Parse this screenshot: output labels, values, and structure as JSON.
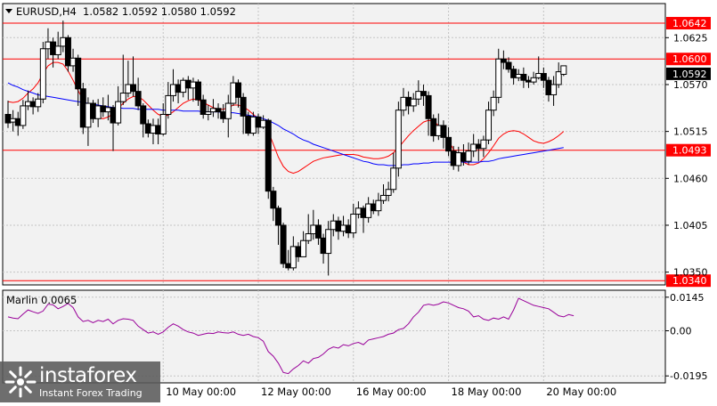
{
  "chart_data": [
    {
      "type": "candlestick",
      "title": "EURUSD,H4  1.0582 1.0592 1.0580 1.0592",
      "symbol_header": "EURUSD,H4",
      "ohlc_header": "1.0582 1.0592 1.0580 1.0592",
      "x_tick_labels": [
        "10 May 00:00",
        "12 May 00:00",
        "16 May 00:00",
        "18 May 00:00",
        "20 May 00:00"
      ],
      "x_tick_bar_index": [
        31,
        50,
        69,
        88,
        107
      ],
      "ylim": [
        1.0335,
        1.0665
      ],
      "y_tick_labels": [
        "1.0625",
        "1.0570",
        "1.0515",
        "1.0460",
        "1.0405",
        "1.0350"
      ],
      "y_ticks": [
        1.0625,
        1.057,
        1.0515,
        1.046,
        1.0405,
        1.035
      ],
      "grid": true,
      "horizontal_levels": [
        {
          "value": 1.0642,
          "label": "1.0642",
          "color": "#ff0000"
        },
        {
          "value": 1.06,
          "label": "1.0600",
          "color": "#ff0000"
        },
        {
          "value": 1.0493,
          "label": "1.0493",
          "color": "#ff0000"
        },
        {
          "value": 1.034,
          "label": "1.0340",
          "color": "#ff0000"
        }
      ],
      "current_price": {
        "value": 1.0592,
        "label": "1.0592"
      },
      "candles": [
        [
          1.0535,
          1.0525,
          1.0551,
          1.0519
        ],
        [
          1.0526,
          1.053,
          1.054,
          1.0515
        ],
        [
          1.053,
          1.0522,
          1.0538,
          1.051
        ],
        [
          1.0522,
          1.0545,
          1.0552,
          1.0518
        ],
        [
          1.0545,
          1.055,
          1.0563,
          1.054
        ],
        [
          1.055,
          1.0544,
          1.0555,
          1.0535
        ],
        [
          1.0544,
          1.0553,
          1.056,
          1.0538
        ],
        [
          1.0553,
          1.0612,
          1.062,
          1.0548
        ],
        [
          1.0612,
          1.062,
          1.0636,
          1.06
        ],
        [
          1.062,
          1.0605,
          1.0625,
          1.059
        ],
        [
          1.0605,
          1.0615,
          1.0632,
          1.06
        ],
        [
          1.0615,
          1.0625,
          1.0645,
          1.0608
        ],
        [
          1.0625,
          1.0592,
          1.0628,
          1.0585
        ],
        [
          1.0592,
          1.0601,
          1.0612,
          1.0585
        ],
        [
          1.0601,
          1.0565,
          1.0605,
          1.0545
        ],
        [
          1.0565,
          1.052,
          1.0572,
          1.0512
        ],
        [
          1.052,
          1.0548,
          1.0555,
          1.0498
        ],
        [
          1.0548,
          1.053,
          1.0552,
          1.0525
        ],
        [
          1.053,
          1.0545,
          1.0553,
          1.052
        ],
        [
          1.0545,
          1.0538,
          1.0555,
          1.0532
        ],
        [
          1.0538,
          1.0543,
          1.0558,
          1.0528
        ],
        [
          1.0543,
          1.0525,
          1.0546,
          1.0492
        ],
        [
          1.0525,
          1.055,
          1.0568,
          1.0522
        ],
        [
          1.055,
          1.056,
          1.0605,
          1.0546
        ],
        [
          1.056,
          1.057,
          1.0598,
          1.0555
        ],
        [
          1.057,
          1.0562,
          1.0603,
          1.0556
        ],
        [
          1.0562,
          1.0545,
          1.0578,
          1.054
        ],
        [
          1.0545,
          1.0524,
          1.0548,
          1.0508
        ],
        [
          1.0524,
          1.0513,
          1.0529,
          1.0508
        ],
        [
          1.0513,
          1.0522,
          1.053,
          1.05
        ],
        [
          1.0522,
          1.0512,
          1.053,
          1.05
        ],
        [
          1.0512,
          1.0535,
          1.0548,
          1.051
        ],
        [
          1.0535,
          1.0557,
          1.0573,
          1.053
        ],
        [
          1.0557,
          1.057,
          1.0588,
          1.055
        ],
        [
          1.057,
          1.0561,
          1.0576,
          1.0548
        ],
        [
          1.0561,
          1.0575,
          1.0578,
          1.0555
        ],
        [
          1.0575,
          1.0566,
          1.058,
          1.0552
        ],
        [
          1.0566,
          1.0573,
          1.0578,
          1.055
        ],
        [
          1.0573,
          1.0552,
          1.0576,
          1.0545
        ],
        [
          1.0552,
          1.0535,
          1.0558,
          1.053
        ],
        [
          1.0535,
          1.0538,
          1.0546,
          1.0528
        ],
        [
          1.0538,
          1.0542,
          1.0553,
          1.0532
        ],
        [
          1.0542,
          1.0538,
          1.0548,
          1.053
        ],
        [
          1.0538,
          1.053,
          1.0547,
          1.0525
        ],
        [
          1.053,
          1.0548,
          1.0558,
          1.0508
        ],
        [
          1.0548,
          1.0572,
          1.058,
          1.0545
        ],
        [
          1.0572,
          1.0555,
          1.0576,
          1.0543
        ],
        [
          1.0555,
          1.0533,
          1.056,
          1.0512
        ],
        [
          1.0533,
          1.0513,
          1.0538,
          1.051
        ],
        [
          1.0513,
          1.0532,
          1.0538,
          1.051
        ],
        [
          1.0532,
          1.052,
          1.0536,
          1.0512
        ],
        [
          1.052,
          1.0528,
          1.0534,
          1.0518
        ],
        [
          1.0528,
          1.0445,
          1.053,
          1.0436
        ],
        [
          1.0445,
          1.0425,
          1.045,
          1.041
        ],
        [
          1.0425,
          1.0405,
          1.0428,
          1.0382
        ],
        [
          1.0405,
          1.036,
          1.0408,
          1.0355
        ],
        [
          1.036,
          1.0355,
          1.0376,
          1.0352
        ],
        [
          1.0355,
          1.038,
          1.0392,
          1.0352
        ],
        [
          1.038,
          1.0368,
          1.0385,
          1.0362
        ],
        [
          1.0368,
          1.0387,
          1.0398,
          1.037
        ],
        [
          1.0387,
          1.0395,
          1.0418,
          1.0383
        ],
        [
          1.0395,
          1.0405,
          1.0423,
          1.0388
        ],
        [
          1.0405,
          1.039,
          1.0412,
          1.0382
        ],
        [
          1.039,
          1.0372,
          1.0395,
          1.036
        ],
        [
          1.0372,
          1.04,
          1.041,
          1.0346
        ],
        [
          1.04,
          1.041,
          1.0418,
          1.0392
        ],
        [
          1.041,
          1.0398,
          1.0415,
          1.0388
        ],
        [
          1.0398,
          1.0405,
          1.0416,
          1.0392
        ],
        [
          1.0405,
          1.0396,
          1.0412,
          1.039
        ],
        [
          1.0396,
          1.0418,
          1.043,
          1.039
        ],
        [
          1.0418,
          1.0425,
          1.0433,
          1.0413
        ],
        [
          1.0425,
          1.0414,
          1.0428,
          1.0396
        ],
        [
          1.0414,
          1.043,
          1.0438,
          1.0408
        ],
        [
          1.043,
          1.0422,
          1.0435,
          1.0418
        ],
        [
          1.0422,
          1.0434,
          1.0443,
          1.0416
        ],
        [
          1.0434,
          1.044,
          1.0453,
          1.043
        ],
        [
          1.044,
          1.0447,
          1.0456,
          1.0433
        ],
        [
          1.0447,
          1.0472,
          1.049,
          1.0443
        ],
        [
          1.0472,
          1.054,
          1.055,
          1.0462
        ],
        [
          1.054,
          1.0555,
          1.0566,
          1.0533
        ],
        [
          1.0555,
          1.0545,
          1.0562,
          1.0535
        ],
        [
          1.0545,
          1.0553,
          1.056,
          1.0538
        ],
        [
          1.0553,
          1.0562,
          1.0575,
          1.0546
        ],
        [
          1.0562,
          1.0557,
          1.057,
          1.0545
        ],
        [
          1.0557,
          1.053,
          1.0562,
          1.051
        ],
        [
          1.053,
          1.051,
          1.0535,
          1.0503
        ],
        [
          1.051,
          1.0522,
          1.0536,
          1.0505
        ],
        [
          1.0522,
          1.0508,
          1.0528,
          1.0495
        ],
        [
          1.0508,
          1.0492,
          1.052,
          1.0486
        ],
        [
          1.0492,
          1.0475,
          1.0498,
          1.047
        ],
        [
          1.0475,
          1.049,
          1.0497,
          1.0468
        ],
        [
          1.049,
          1.048,
          1.05,
          1.0475
        ],
        [
          1.048,
          1.0492,
          1.0502,
          1.0476
        ],
        [
          1.0492,
          1.05,
          1.0512,
          1.0485
        ],
        [
          1.05,
          1.0495,
          1.0506,
          1.048
        ],
        [
          1.0495,
          1.0505,
          1.051,
          1.0485
        ],
        [
          1.0505,
          1.054,
          1.055,
          1.05
        ],
        [
          1.054,
          1.0555,
          1.0563,
          1.0533
        ],
        [
          1.0555,
          1.06,
          1.0612,
          1.0548
        ],
        [
          1.06,
          1.0596,
          1.061,
          1.0588
        ],
        [
          1.0596,
          1.0588,
          1.0602,
          1.0584
        ],
        [
          1.0588,
          1.0578,
          1.0592,
          1.057
        ],
        [
          1.0578,
          1.0582,
          1.0588,
          1.0574
        ],
        [
          1.0582,
          1.0575,
          1.059,
          1.0566
        ],
        [
          1.0575,
          1.0573,
          1.058,
          1.0566
        ],
        [
          1.0573,
          1.0578,
          1.0585,
          1.057
        ],
        [
          1.0578,
          1.0583,
          1.0603,
          1.0576
        ],
        [
          1.0583,
          1.0575,
          1.059,
          1.0566
        ],
        [
          1.0575,
          1.0558,
          1.0579,
          1.055
        ],
        [
          1.0558,
          1.057,
          1.058,
          1.0545
        ],
        [
          1.057,
          1.0585,
          1.0596,
          1.0566
        ],
        [
          1.0582,
          1.0592,
          1.0592,
          1.058
        ]
      ],
      "series": [
        {
          "name": "",
          "type": "moving-average",
          "color": "#ff0000",
          "values": [
            1.055,
            1.0549,
            1.055,
            1.0554,
            1.056,
            1.0565,
            1.0572,
            1.0583,
            1.0592,
            1.0596,
            1.0596,
            1.0594,
            1.0586,
            1.0575,
            1.0563,
            1.0552,
            1.0542,
            1.0535,
            1.0531,
            1.053,
            1.0532,
            1.0536,
            1.0542,
            1.0548,
            1.0553,
            1.0556,
            1.0556,
            1.0552,
            1.0546,
            1.054,
            1.0535,
            1.0533,
            1.0534,
            1.0538,
            1.0543,
            1.0548,
            1.0551,
            1.0553,
            1.0552,
            1.0549,
            1.0546,
            1.0543,
            1.0541,
            1.0541,
            1.0543,
            1.0546,
            1.0546,
            1.0544,
            1.054,
            1.0535,
            1.053,
            1.0525,
            1.0515,
            1.05,
            1.0485,
            1.0474,
            1.0468,
            1.0466,
            1.0468,
            1.0472,
            1.0476,
            1.048,
            1.0482,
            1.0484,
            1.0485,
            1.0486,
            1.0487,
            1.0488,
            1.0488,
            1.0488,
            1.0487,
            1.0485,
            1.0484,
            1.0483,
            1.0483,
            1.0484,
            1.0486,
            1.049,
            1.0496,
            1.0503,
            1.051,
            1.0516,
            1.0521,
            1.0526,
            1.0528,
            1.0527,
            1.0522,
            1.0514,
            1.0504,
            1.0494,
            1.0485,
            1.0479,
            1.0476,
            1.0476,
            1.0478,
            1.0483,
            1.049,
            1.0498,
            1.0507,
            1.0512,
            1.0515,
            1.0516,
            1.0515,
            1.0512,
            1.0508,
            1.0504,
            1.0502,
            1.0501,
            1.0503,
            1.0506,
            1.051,
            1.0515
          ]
        },
        {
          "name": "",
          "type": "moving-average",
          "color": "#0000ff",
          "values": [
            1.0572,
            1.0569,
            1.0567,
            1.0564,
            1.0562,
            1.056,
            1.0558,
            1.0557,
            1.0556,
            1.0555,
            1.0554,
            1.0553,
            1.0552,
            1.0551,
            1.055,
            1.0549,
            1.0548,
            1.0547,
            1.0546,
            1.0545,
            1.0544,
            1.0543,
            1.0543,
            1.0542,
            1.0542,
            1.0542,
            1.0541,
            1.0541,
            1.0541,
            1.0541,
            1.0541,
            1.054,
            1.054,
            1.054,
            1.054,
            1.0539,
            1.0539,
            1.0539,
            1.0539,
            1.0538,
            1.0538,
            1.0538,
            1.0538,
            1.0537,
            1.0537,
            1.0537,
            1.0536,
            1.0535,
            1.0534,
            1.0533,
            1.0532,
            1.053,
            1.0528,
            1.0525,
            1.0522,
            1.0518,
            1.0515,
            1.0512,
            1.0508,
            1.0505,
            1.0503,
            1.05,
            1.0498,
            1.0496,
            1.0494,
            1.0492,
            1.049,
            1.0488,
            1.0486,
            1.0484,
            1.0482,
            1.048,
            1.0479,
            1.0477,
            1.0476,
            1.0476,
            1.0475,
            1.0475,
            1.0475,
            1.0476,
            1.0476,
            1.0477,
            1.0477,
            1.0478,
            1.0478,
            1.0479,
            1.0479,
            1.0479,
            1.0479,
            1.0479,
            1.0479,
            1.0479,
            1.0479,
            1.0479,
            1.0479,
            1.048,
            1.048,
            1.0481,
            1.0483,
            1.0484,
            1.0485,
            1.0486,
            1.0487,
            1.0488,
            1.0489,
            1.049,
            1.0491,
            1.0492,
            1.0493,
            1.0494,
            1.0495,
            1.0496
          ]
        }
      ]
    },
    {
      "type": "line",
      "title": "Marlin 0.0065",
      "indicator_header": "Marlin 0.0065",
      "ylim": [
        -0.0225,
        0.0175
      ],
      "y_tick_labels": [
        "0.0145",
        "0.00",
        "-0.0195"
      ],
      "y_ticks": [
        0.0145,
        0.0,
        -0.0195
      ],
      "series": [
        {
          "name": "",
          "color": "#990099",
          "values": [
            0.006,
            0.0055,
            0.0052,
            0.0072,
            0.009,
            0.0082,
            0.0075,
            0.0085,
            0.0115,
            0.0112,
            0.0095,
            0.0105,
            0.0118,
            0.01,
            0.006,
            0.004,
            0.0045,
            0.0035,
            0.0045,
            0.004,
            0.005,
            0.003,
            0.0045,
            0.0052,
            0.005,
            0.0045,
            0.002,
            0.0005,
            -0.001,
            -0.0005,
            -0.0015,
            -0.0005,
            0.0015,
            0.003,
            0.002,
            0.0005,
            -0.0005,
            -0.001,
            -0.002,
            -0.0015,
            -0.001,
            -0.0012,
            -0.0005,
            -0.0008,
            -0.001,
            -0.0005,
            -0.0015,
            -0.002,
            -0.0015,
            -0.0025,
            -0.003,
            -0.0045,
            -0.009,
            -0.011,
            -0.014,
            -0.018,
            -0.0185,
            -0.0165,
            -0.015,
            -0.013,
            -0.014,
            -0.012,
            -0.0115,
            -0.01,
            -0.008,
            -0.007,
            -0.0075,
            -0.006,
            -0.0065,
            -0.0055,
            -0.005,
            -0.006,
            -0.004,
            -0.0035,
            -0.003,
            -0.0025,
            -0.0015,
            -0.001,
            0.0005,
            0.001,
            0.003,
            0.006,
            0.008,
            0.011,
            0.0115,
            0.011,
            0.0115,
            0.0125,
            0.012,
            0.011,
            0.01,
            0.0095,
            0.0085,
            0.006,
            0.0065,
            0.005,
            0.0045,
            0.0055,
            0.005,
            0.006,
            0.005,
            0.009,
            0.014,
            0.013,
            0.012,
            0.011,
            0.0105,
            0.01,
            0.0095,
            0.008,
            0.0065,
            0.006,
            0.007,
            0.0065
          ]
        }
      ]
    }
  ],
  "watermark": {
    "brand": "instaforex",
    "tagline": "Instant Forex Trading",
    "obscured_label": "4 Ma..."
  }
}
